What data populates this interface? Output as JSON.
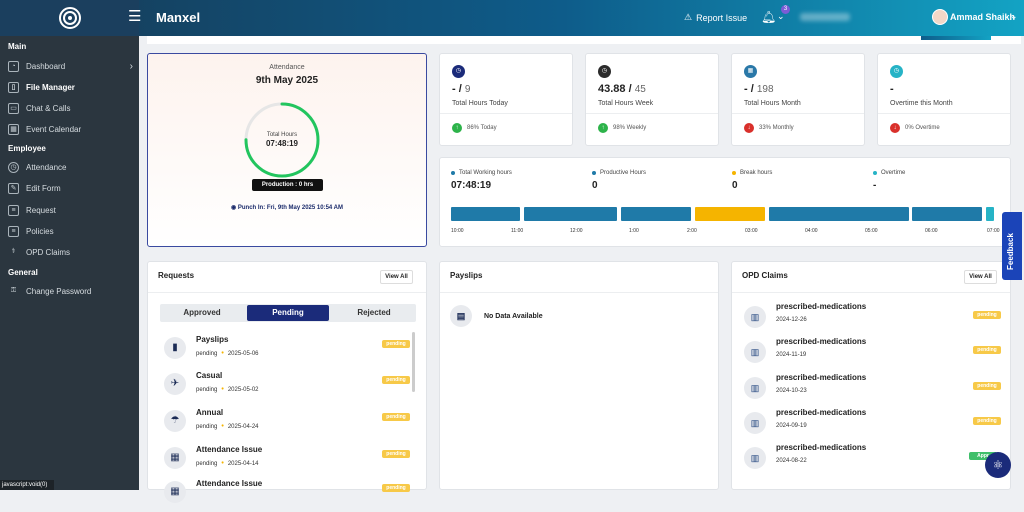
{
  "header": {
    "app_title": "Manxel",
    "report_issue": "Report Issue",
    "notification_count": "3",
    "user_name": "Ammad Shaikh"
  },
  "sidebar": {
    "sections": [
      {
        "title": "Main"
      },
      {
        "title": "Employee"
      },
      {
        "title": "General"
      }
    ],
    "items": [
      {
        "label": "Dashboard"
      },
      {
        "label": "File Manager"
      },
      {
        "label": "Chat & Calls"
      },
      {
        "label": "Event Calendar"
      },
      {
        "label": "Attendance"
      },
      {
        "label": "Edit Form"
      },
      {
        "label": "Request"
      },
      {
        "label": "Policies"
      },
      {
        "label": "OPD Claims"
      },
      {
        "label": "Change Password"
      }
    ],
    "status_text": "javascript:void(0)"
  },
  "attendance": {
    "label": "Attendance",
    "date": "9th May 2025",
    "ring_label": "Total Hours",
    "ring_value": "07:48:19",
    "ring_progress": 0.75,
    "production": "Production : 0 hrs",
    "punch_in": "Punch In:  Fri, 9th May 2025 10:54 AM"
  },
  "stats": [
    {
      "value": "- / ",
      "max": "9",
      "label": "Total Hours Today",
      "trend": "86% Today",
      "color": "#1b2b7a",
      "trend_color": "#2db34a"
    },
    {
      "value": "43.88 / ",
      "max": "45",
      "label": "Total Hours Week",
      "trend": "98% Weekly",
      "color": "#2b2b2b",
      "trend_color": "#2db34a"
    },
    {
      "value": "- / ",
      "max": "198",
      "label": "Total Hours Month",
      "trend": "33% Monthly",
      "color": "#2a78a8",
      "trend_color": "#d9302b"
    },
    {
      "value": "-",
      "max": "",
      "label": "Overtime this Month",
      "trend": "0% Overtime",
      "color": "#26b3c6",
      "trend_color": "#d9302b"
    }
  ],
  "timeline": {
    "columns": [
      {
        "label": "Total Working hours",
        "value": "07:48:19",
        "color": "#1f7aa8"
      },
      {
        "label": "Productive Hours",
        "value": "0",
        "color": "#1f7aa8"
      },
      {
        "label": "Break hours",
        "value": "0",
        "color": "#f5b400"
      },
      {
        "label": "Overtime",
        "value": "-",
        "color": "#26b3c6"
      }
    ],
    "ticks": [
      "10:00",
      "11:00",
      "12:00",
      "1:00",
      "2:00",
      "03:00",
      "04:00",
      "05:00",
      "06:00",
      "07:00"
    ],
    "segments": [
      {
        "type": "work",
        "color": "#1f7aa8"
      },
      {
        "type": "work",
        "color": "#1f7aa8"
      },
      {
        "type": "work",
        "color": "#1f7aa8"
      },
      {
        "type": "break",
        "color": "#f5b400"
      },
      {
        "type": "work",
        "color": "#1f7aa8"
      },
      {
        "type": "work",
        "color": "#1f7aa8"
      },
      {
        "type": "work",
        "color": "#1f7aa8"
      },
      {
        "type": "overtime",
        "color": "#26b3c6"
      }
    ]
  },
  "requests": {
    "title": "Requests",
    "view_all": "View All",
    "tabs": [
      "Approved",
      "Pending",
      "Rejected"
    ],
    "active_tab": "Pending",
    "items": [
      {
        "name": "Payslips",
        "status": "pending",
        "date": "2025-05-06",
        "badge": "pending",
        "icon": "▮"
      },
      {
        "name": "Casual",
        "status": "pending",
        "date": "2025-05-02",
        "badge": "pending",
        "icon": "✈"
      },
      {
        "name": "Annual",
        "status": "pending",
        "date": "2025-04-24",
        "badge": "pending",
        "icon": "☂"
      },
      {
        "name": "Attendance Issue",
        "status": "pending",
        "date": "2025-04-14",
        "badge": "pending",
        "icon": "▦"
      },
      {
        "name": "Attendance Issue",
        "status": "",
        "date": "",
        "badge": "pending",
        "icon": "▦"
      }
    ]
  },
  "payslips": {
    "title": "Payslips",
    "empty": "No Data Available"
  },
  "opd": {
    "title": "OPD Claims",
    "view_all": "View All",
    "items": [
      {
        "name": "prescribed-medications",
        "date": "2024-12-26",
        "badge": "pending",
        "badge_color": "#f7c948"
      },
      {
        "name": "prescribed-medications",
        "date": "2024-11-19",
        "badge": "pending",
        "badge_color": "#f7c948"
      },
      {
        "name": "prescribed-medications",
        "date": "2024-10-23",
        "badge": "pending",
        "badge_color": "#f7c948"
      },
      {
        "name": "prescribed-medications",
        "date": "2024-09-19",
        "badge": "pending",
        "badge_color": "#f7c948"
      },
      {
        "name": "prescribed-medications",
        "date": "2024-08-22",
        "badge": "Appr",
        "badge_color": "#3fbf6a"
      }
    ]
  },
  "feedback": "Feedback"
}
